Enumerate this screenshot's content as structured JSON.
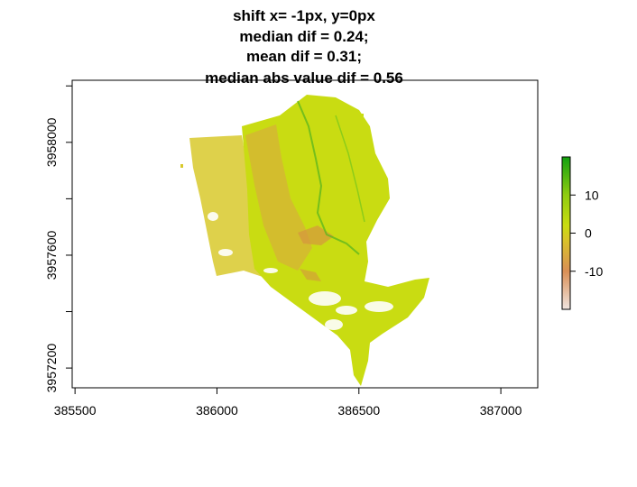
{
  "chart_data": {
    "type": "heatmap",
    "title_lines": [
      "shift x= -1px, y=0px",
      "median dif = 0.24;",
      "mean dif = 0.31;",
      "median abs value dif = 0.56"
    ],
    "xlabel": "",
    "ylabel": "",
    "x_ticks": [
      385500,
      386000,
      386500,
      387000
    ],
    "y_ticks": [
      3957200,
      3957600,
      3958000
    ],
    "y_ticks_minor": [
      3957400,
      3957800,
      3958200
    ],
    "xlim": [
      385490,
      387130
    ],
    "ylim": [
      3957130,
      3958220
    ],
    "legend": {
      "position": "right",
      "range": [
        -20,
        20
      ],
      "ticks": [
        10,
        0,
        -10
      ],
      "tick_labels": [
        "10",
        "0",
        "-10"
      ],
      "colors": [
        "#f0e4e0",
        "#d98f55",
        "#d9c22a",
        "#c9dc10",
        "#8fcc10",
        "#12a010"
      ]
    },
    "region_color_typical": "#c9dc10",
    "grid": false
  }
}
